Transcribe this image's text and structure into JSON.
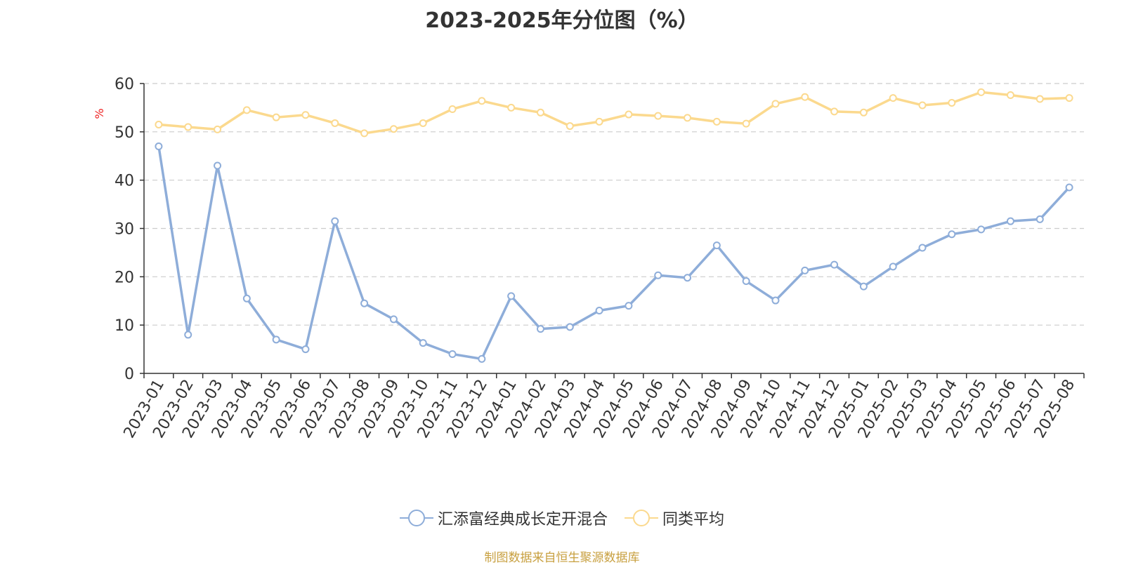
{
  "chart_data": {
    "type": "line",
    "title": "2023-2025年分位图（%）",
    "ylabel": "%",
    "ylim": [
      0,
      60
    ],
    "yticks": [
      0,
      10,
      20,
      30,
      40,
      50,
      60
    ],
    "grid": true,
    "legend_position": "bottom",
    "categories": [
      "2023-01",
      "2023-02",
      "2023-03",
      "2023-04",
      "2023-05",
      "2023-06",
      "2023-07",
      "2023-08",
      "2023-09",
      "2023-10",
      "2023-11",
      "2023-12",
      "2024-01",
      "2024-02",
      "2024-03",
      "2024-04",
      "2024-05",
      "2024-06",
      "2024-07",
      "2024-08",
      "2024-09",
      "2024-10",
      "2024-11",
      "2024-12",
      "2025-01",
      "2025-02",
      "2025-03",
      "2025-04",
      "2025-05",
      "2025-06",
      "2025-07",
      "2025-08"
    ],
    "series": [
      {
        "name": "汇添富经典成长定开混合",
        "color": "#8eadd9",
        "values": [
          47,
          8,
          43,
          15.5,
          7,
          5,
          31.5,
          14.5,
          11.2,
          6.3,
          4,
          3,
          16,
          9.2,
          9.6,
          13,
          14,
          20.3,
          19.8,
          26.5,
          19.1,
          15.1,
          21.3,
          22.5,
          18,
          22.1,
          26,
          28.8,
          29.8,
          31.5,
          31.9,
          38.5
        ]
      },
      {
        "name": "同类平均",
        "color": "#fbd98e",
        "values": [
          51.5,
          51,
          50.5,
          54.5,
          53,
          53.5,
          51.8,
          49.7,
          50.6,
          51.8,
          54.7,
          56.4,
          55,
          54,
          51.2,
          52.1,
          53.6,
          53.3,
          52.9,
          52.1,
          51.7,
          55.8,
          57.2,
          54.2,
          54,
          57,
          55.5,
          56,
          58.2,
          57.6,
          56.8,
          57
        ]
      }
    ]
  },
  "source": "制图数据来自恒生聚源数据库"
}
